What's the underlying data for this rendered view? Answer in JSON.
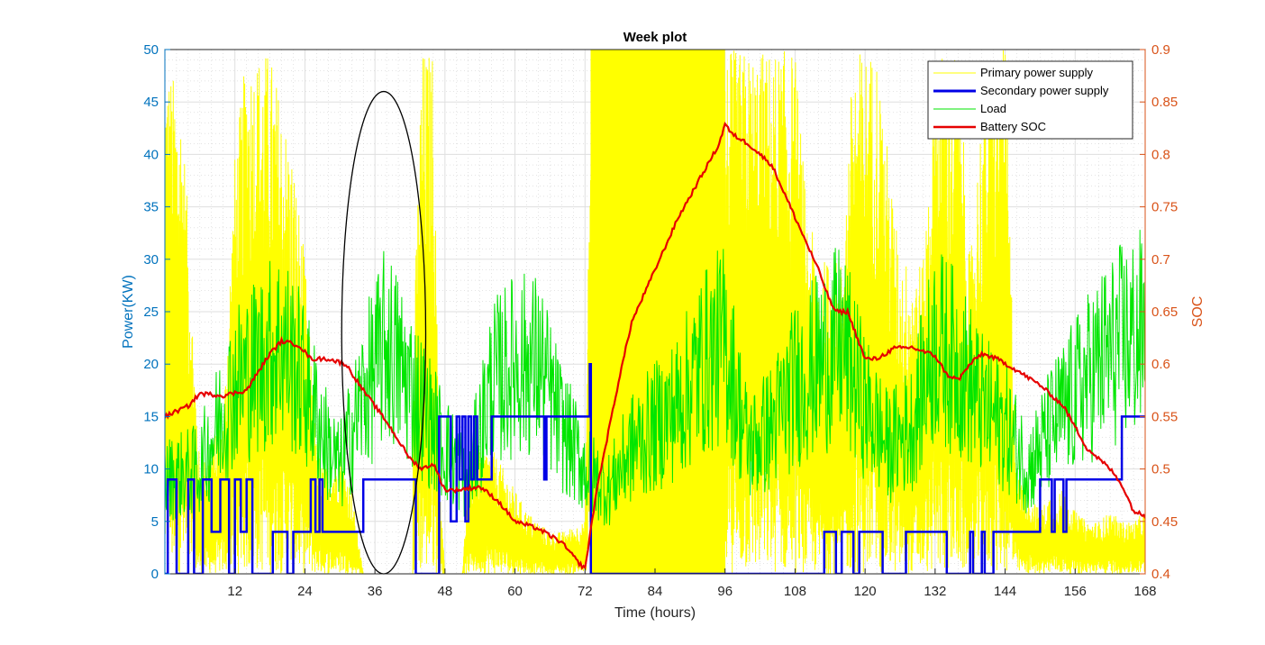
{
  "chart_data": {
    "type": "line",
    "title": "Week plot",
    "xlabel": "Time (hours)",
    "ylabel_left": "Power(KW)",
    "ylabel_right": "SOC",
    "xlim": [
      0,
      168
    ],
    "ylim_left": [
      0,
      50
    ],
    "ylim_right": [
      0.4,
      0.9
    ],
    "x_ticks": [
      12,
      24,
      36,
      48,
      60,
      72,
      84,
      96,
      108,
      120,
      132,
      144,
      156,
      168
    ],
    "y_ticks_left": [
      0,
      5,
      10,
      15,
      20,
      25,
      30,
      35,
      40,
      45,
      50
    ],
    "y_ticks_right": [
      0.4,
      0.45,
      0.5,
      0.55,
      0.6,
      0.65,
      0.7,
      0.75,
      0.8,
      0.85,
      0.9
    ],
    "grid": true,
    "legend_position": "top-right",
    "colors": {
      "primary": "#FFFF00",
      "secondary": "#0000E6",
      "load": "#00E600",
      "soc": "#E60000",
      "left_axis": "#0072BD",
      "right_axis": "#D95319"
    },
    "series": [
      {
        "name": "Primary power supply",
        "axis": "left",
        "kind": "solar-envelope",
        "envelope": [
          [
            0,
            50
          ],
          [
            3,
            45
          ],
          [
            6,
            10
          ],
          [
            10,
            15
          ],
          [
            12,
            40
          ],
          [
            14,
            50
          ],
          [
            16,
            50
          ],
          [
            18,
            50
          ],
          [
            20,
            45
          ],
          [
            22,
            40
          ],
          [
            24,
            30
          ],
          [
            26,
            12
          ],
          [
            28,
            10
          ],
          [
            30,
            12
          ],
          [
            32,
            8
          ],
          [
            34,
            0
          ],
          [
            42,
            0
          ],
          [
            43,
            30
          ],
          [
            44,
            50
          ],
          [
            46,
            50
          ],
          [
            47,
            10
          ],
          [
            48,
            0
          ],
          [
            51,
            0
          ],
          [
            52,
            10
          ],
          [
            54,
            12
          ],
          [
            56,
            12
          ],
          [
            58,
            10
          ],
          [
            60,
            8
          ],
          [
            62,
            6
          ],
          [
            64,
            5
          ],
          [
            66,
            4
          ],
          [
            68,
            4
          ],
          [
            72,
            5
          ],
          [
            73,
            50
          ],
          [
            96,
            50
          ],
          [
            97,
            50
          ],
          [
            108,
            50
          ],
          [
            110,
            35
          ],
          [
            112,
            30
          ],
          [
            114,
            30
          ],
          [
            116,
            30
          ],
          [
            118,
            50
          ],
          [
            122,
            50
          ],
          [
            126,
            30
          ],
          [
            130,
            30
          ],
          [
            132,
            50
          ],
          [
            136,
            50
          ],
          [
            138,
            30
          ],
          [
            140,
            45
          ],
          [
            142,
            50
          ],
          [
            144,
            50
          ],
          [
            146,
            10
          ],
          [
            148,
            8
          ],
          [
            150,
            6
          ],
          [
            152,
            8
          ],
          [
            154,
            8
          ],
          [
            156,
            6
          ],
          [
            158,
            5
          ],
          [
            160,
            5
          ],
          [
            162,
            6
          ],
          [
            164,
            5
          ],
          [
            166,
            5
          ],
          [
            168,
            6
          ]
        ]
      },
      {
        "name": "Secondary power supply",
        "axis": "left",
        "kind": "step",
        "segments": [
          [
            0.0,
            0
          ],
          [
            0.5,
            9
          ],
          [
            2.0,
            0
          ],
          [
            4.0,
            9
          ],
          [
            5.0,
            0
          ],
          [
            6.5,
            9
          ],
          [
            8.0,
            4
          ],
          [
            9.5,
            9
          ],
          [
            11.0,
            0
          ],
          [
            12.0,
            9
          ],
          [
            13.0,
            4
          ],
          [
            14.0,
            9
          ],
          [
            15.0,
            0
          ],
          [
            18.5,
            4
          ],
          [
            21.0,
            0
          ],
          [
            22.0,
            4
          ],
          [
            24.0,
            4
          ],
          [
            25.0,
            9
          ],
          [
            25.8,
            4
          ],
          [
            26.5,
            9
          ],
          [
            27.0,
            4
          ],
          [
            30.0,
            4
          ],
          [
            34.0,
            9
          ],
          [
            43.0,
            0
          ],
          [
            47.0,
            15
          ],
          [
            49.0,
            5
          ],
          [
            50.0,
            15
          ],
          [
            50.5,
            9
          ],
          [
            51.0,
            15
          ],
          [
            51.5,
            5
          ],
          [
            52.0,
            15
          ],
          [
            52.5,
            9
          ],
          [
            53.0,
            15
          ],
          [
            53.5,
            9
          ],
          [
            56.0,
            15
          ],
          [
            59.0,
            15
          ],
          [
            60.0,
            15
          ],
          [
            65.0,
            9
          ],
          [
            65.4,
            15
          ],
          [
            72.0,
            15
          ],
          [
            72.8,
            20
          ],
          [
            73.0,
            0
          ],
          [
            113.0,
            4
          ],
          [
            115.0,
            0
          ],
          [
            116.0,
            4
          ],
          [
            118.0,
            0
          ],
          [
            119.0,
            4
          ],
          [
            123.0,
            0
          ],
          [
            127.0,
            4
          ],
          [
            134.0,
            0
          ],
          [
            138.0,
            4
          ],
          [
            138.5,
            0
          ],
          [
            140.0,
            4
          ],
          [
            140.5,
            0
          ],
          [
            142.0,
            4
          ],
          [
            150.0,
            9
          ],
          [
            152.0,
            4
          ],
          [
            152.5,
            9
          ],
          [
            154.0,
            4
          ],
          [
            154.5,
            9
          ],
          [
            164.0,
            15
          ],
          [
            168.0,
            15
          ]
        ]
      },
      {
        "name": "Load",
        "axis": "left",
        "kind": "noisy",
        "baseline": [
          [
            0,
            9
          ],
          [
            6,
            10
          ],
          [
            9,
            14
          ],
          [
            12,
            18
          ],
          [
            16,
            20
          ],
          [
            20,
            22
          ],
          [
            24,
            18
          ],
          [
            28,
            12
          ],
          [
            30,
            10
          ],
          [
            34,
            17
          ],
          [
            38,
            22
          ],
          [
            42,
            18
          ],
          [
            46,
            14
          ],
          [
            48,
            12
          ],
          [
            52,
            9
          ],
          [
            56,
            18
          ],
          [
            60,
            20
          ],
          [
            64,
            20
          ],
          [
            68,
            14
          ],
          [
            72,
            10
          ],
          [
            76,
            8
          ],
          [
            80,
            12
          ],
          [
            84,
            14
          ],
          [
            88,
            16
          ],
          [
            92,
            20
          ],
          [
            96,
            22
          ],
          [
            100,
            12
          ],
          [
            104,
            14
          ],
          [
            108,
            18
          ],
          [
            112,
            20
          ],
          [
            116,
            22
          ],
          [
            120,
            16
          ],
          [
            124,
            12
          ],
          [
            128,
            14
          ],
          [
            132,
            22
          ],
          [
            136,
            20
          ],
          [
            140,
            16
          ],
          [
            144,
            14
          ],
          [
            148,
            10
          ],
          [
            152,
            14
          ],
          [
            156,
            17
          ],
          [
            160,
            20
          ],
          [
            164,
            22
          ],
          [
            168,
            23
          ]
        ]
      },
      {
        "name": "Battery SOC",
        "axis": "right",
        "kind": "line",
        "points": [
          [
            0,
            0.55
          ],
          [
            4,
            0.56
          ],
          [
            6,
            0.572
          ],
          [
            10,
            0.57
          ],
          [
            14,
            0.575
          ],
          [
            18,
            0.61
          ],
          [
            20,
            0.622
          ],
          [
            23,
            0.618
          ],
          [
            25,
            0.605
          ],
          [
            28,
            0.605
          ],
          [
            31,
            0.6
          ],
          [
            34,
            0.575
          ],
          [
            38,
            0.545
          ],
          [
            42,
            0.51
          ],
          [
            44,
            0.5
          ],
          [
            46,
            0.505
          ],
          [
            48,
            0.48
          ],
          [
            50,
            0.48
          ],
          [
            54,
            0.483
          ],
          [
            57,
            0.47
          ],
          [
            60,
            0.45
          ],
          [
            64,
            0.443
          ],
          [
            68,
            0.43
          ],
          [
            71,
            0.41
          ],
          [
            72,
            0.405
          ],
          [
            74,
            0.48
          ],
          [
            78,
            0.59
          ],
          [
            80,
            0.64
          ],
          [
            84,
            0.69
          ],
          [
            88,
            0.74
          ],
          [
            92,
            0.78
          ],
          [
            95,
            0.81
          ],
          [
            96,
            0.83
          ],
          [
            97,
            0.82
          ],
          [
            100,
            0.81
          ],
          [
            104,
            0.79
          ],
          [
            108,
            0.74
          ],
          [
            112,
            0.69
          ],
          [
            114,
            0.66
          ],
          [
            115,
            0.65
          ],
          [
            117,
            0.65
          ],
          [
            120,
            0.605
          ],
          [
            122,
            0.605
          ],
          [
            125,
            0.615
          ],
          [
            128,
            0.616
          ],
          [
            132,
            0.608
          ],
          [
            134,
            0.59
          ],
          [
            136,
            0.585
          ],
          [
            138,
            0.6
          ],
          [
            140,
            0.61
          ],
          [
            143,
            0.604
          ],
          [
            146,
            0.594
          ],
          [
            150,
            0.58
          ],
          [
            154,
            0.56
          ],
          [
            158,
            0.52
          ],
          [
            162,
            0.5
          ],
          [
            164,
            0.485
          ],
          [
            166,
            0.46
          ],
          [
            168,
            0.455
          ]
        ]
      }
    ],
    "annotations": [
      {
        "kind": "ellipse",
        "cx": 37.5,
        "cy": 23,
        "rx": 7.2,
        "ry": 23
      }
    ]
  }
}
